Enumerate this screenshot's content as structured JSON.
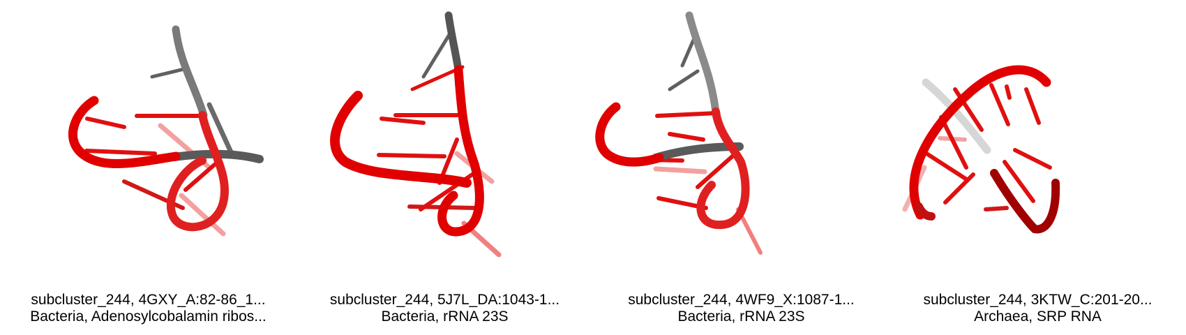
{
  "panels": [
    {
      "title": "subcluster_244, 4GXY_A:82-86_1...",
      "subtitle": "Bacteria, Adenosylcobalamin ribos...",
      "image": "rna-3d-structure-render"
    },
    {
      "title": "subcluster_244, 5J7L_DA:1043-1...",
      "subtitle": "Bacteria, rRNA 23S",
      "image": "rna-3d-structure-render"
    },
    {
      "title": "subcluster_244, 4WF9_X:1087-1...",
      "subtitle": "Bacteria, rRNA 23S",
      "image": "rna-3d-structure-render"
    },
    {
      "title": "subcluster_244, 3KTW_C:201-20...",
      "subtitle": "Archaea, SRP RNA",
      "image": "rna-3d-structure-render"
    }
  ],
  "colors": {
    "backbone_red": "#e00000",
    "backbone_red_light": "#f06060",
    "backbone_gray": "#5a5a5a",
    "backbone_gray_light": "#a8a8a8",
    "background": "#ffffff",
    "caption_text": "#000000"
  }
}
